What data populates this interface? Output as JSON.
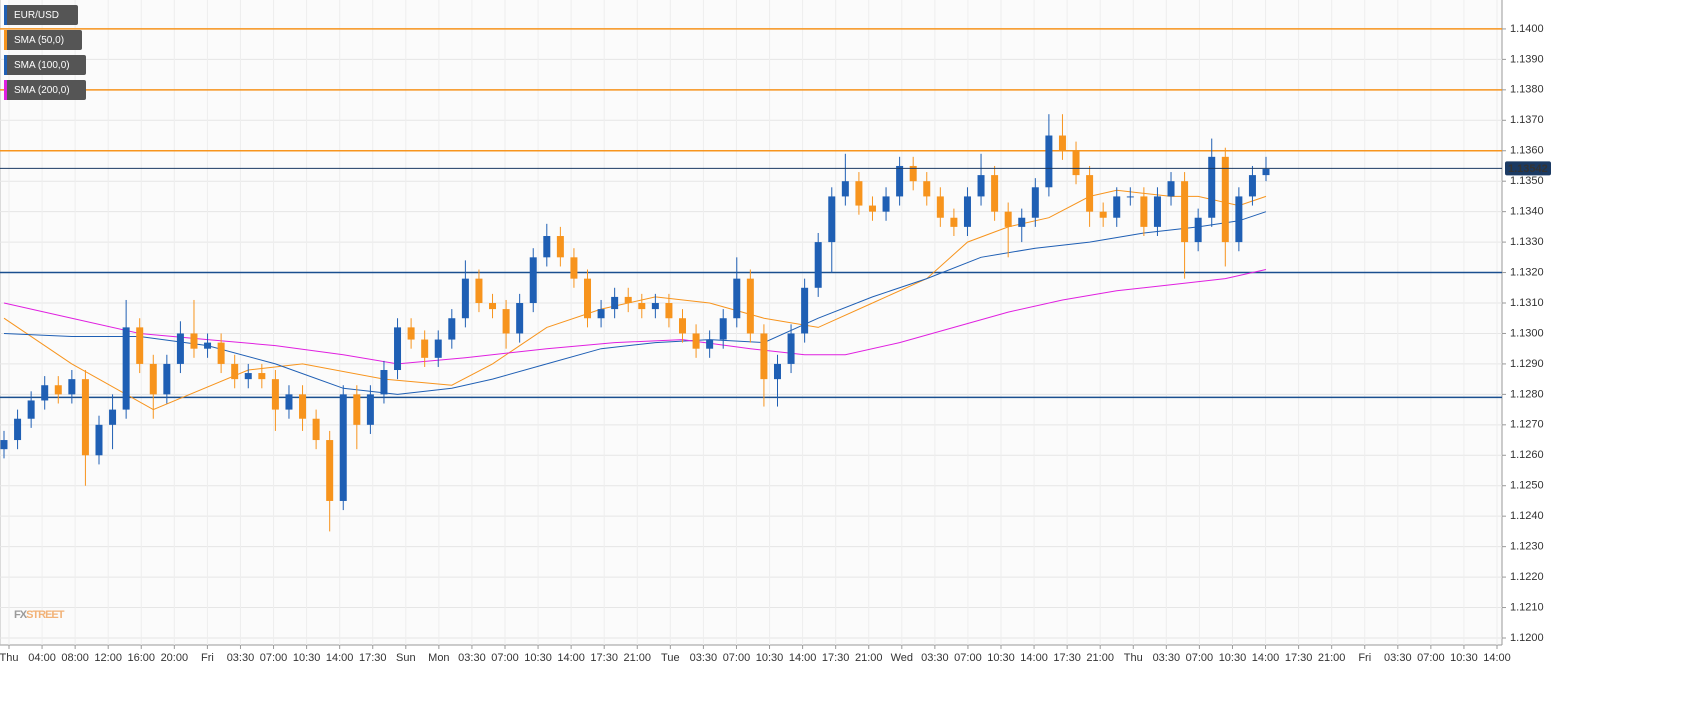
{
  "chart_data": {
    "type": "candlestick",
    "ylim": [
      1.11977,
      1.14095
    ],
    "yticks": [
      {
        "value": 1.12,
        "label": "1.1200"
      },
      {
        "value": 1.121,
        "label": "1.1210"
      },
      {
        "value": 1.122,
        "label": "1.1220"
      },
      {
        "value": 1.123,
        "label": "1.1230"
      },
      {
        "value": 1.124,
        "label": "1.1240"
      },
      {
        "value": 1.125,
        "label": "1.1250"
      },
      {
        "value": 1.126,
        "label": "1.1260"
      },
      {
        "value": 1.127,
        "label": "1.1270"
      },
      {
        "value": 1.128,
        "label": "1.1280"
      },
      {
        "value": 1.129,
        "label": "1.1290"
      },
      {
        "value": 1.13,
        "label": "1.1300"
      },
      {
        "value": 1.131,
        "label": "1.1310"
      },
      {
        "value": 1.132,
        "label": "1.1320"
      },
      {
        "value": 1.133,
        "label": "1.1330"
      },
      {
        "value": 1.134,
        "label": "1.1340"
      },
      {
        "value": 1.135,
        "label": "1.1350"
      },
      {
        "value": 1.136,
        "label": "1.1360"
      },
      {
        "value": 1.137,
        "label": "1.1370"
      },
      {
        "value": 1.138,
        "label": "1.1380"
      },
      {
        "value": 1.139,
        "label": "1.1390"
      },
      {
        "value": 1.14,
        "label": "1.1400"
      }
    ],
    "categories": [
      "Thu",
      "04:00",
      "08:00",
      "12:00",
      "16:00",
      "20:00",
      "Fri",
      "03:30",
      "07:00",
      "10:30",
      "14:00",
      "17:30",
      "Sun",
      "Mon",
      "03:30",
      "07:00",
      "10:30",
      "14:00",
      "17:30",
      "21:00",
      "Tue",
      "03:30",
      "07:00",
      "10:30",
      "14:00",
      "17:30",
      "21:00",
      "Wed",
      "03:30",
      "07:00",
      "10:30",
      "14:00",
      "17:30",
      "21:00",
      "Thu",
      "03:30",
      "07:00",
      "10:30",
      "14:00",
      "17:30",
      "21:00",
      "Fri",
      "03:30",
      "07:00",
      "10:30",
      "14:00"
    ],
    "grid": true,
    "candles": {
      "name": "EUR/USD",
      "up_color": "#1f5fb4",
      "down_color": "#f7941d",
      "open": [
        1.1262,
        1.1265,
        1.1272,
        1.1278,
        1.1283,
        1.128,
        1.1285,
        1.126,
        1.127,
        1.1275,
        1.1302,
        1.129,
        1.128,
        1.129,
        1.13,
        1.1295,
        1.1297,
        1.129,
        1.1285,
        1.1287,
        1.1285,
        1.1275,
        1.128,
        1.1272,
        1.1265,
        1.1245,
        1.128,
        1.127,
        1.128,
        1.1288,
        1.1302,
        1.1298,
        1.1292,
        1.1298,
        1.1305,
        1.1318,
        1.131,
        1.1308,
        1.13,
        1.131,
        1.1325,
        1.1332,
        1.1325,
        1.1318,
        1.1305,
        1.1308,
        1.1312,
        1.131,
        1.1308,
        1.131,
        1.1305,
        1.13,
        1.1295,
        1.1298,
        1.1305,
        1.1318,
        1.13,
        1.1285,
        1.129,
        1.13,
        1.1315,
        1.133,
        1.1345,
        1.135,
        1.1342,
        1.134,
        1.1345,
        1.1355,
        1.135,
        1.1345,
        1.1338,
        1.1335,
        1.1345,
        1.1352,
        1.134,
        1.1335,
        1.1338,
        1.1348,
        1.1365,
        1.136,
        1.1352,
        1.134,
        1.1338,
        1.1345,
        1.1345,
        1.1335,
        1.1345,
        1.135,
        1.133,
        1.1338,
        1.1358,
        1.133,
        1.1345,
        1.1352
      ],
      "high": [
        1.1268,
        1.1275,
        1.1281,
        1.1286,
        1.1286,
        1.1288,
        1.1288,
        1.1273,
        1.128,
        1.1311,
        1.1305,
        1.1293,
        1.1293,
        1.1304,
        1.1311,
        1.13,
        1.13,
        1.1293,
        1.129,
        1.129,
        1.1288,
        1.1283,
        1.1283,
        1.1275,
        1.1268,
        1.1283,
        1.1283,
        1.1283,
        1.1291,
        1.1305,
        1.1305,
        1.1301,
        1.1301,
        1.1308,
        1.1324,
        1.1321,
        1.1313,
        1.1311,
        1.1313,
        1.1328,
        1.1336,
        1.1335,
        1.1328,
        1.1321,
        1.1311,
        1.1315,
        1.1315,
        1.1313,
        1.1313,
        1.1313,
        1.1308,
        1.1303,
        1.1301,
        1.1308,
        1.1325,
        1.1321,
        1.1303,
        1.1293,
        1.1303,
        1.1318,
        1.1333,
        1.1348,
        1.1359,
        1.1353,
        1.1345,
        1.1348,
        1.1358,
        1.1358,
        1.1353,
        1.1348,
        1.1341,
        1.1348,
        1.1359,
        1.1355,
        1.1343,
        1.1341,
        1.1351,
        1.1372,
        1.1372,
        1.1363,
        1.1355,
        1.1343,
        1.1348,
        1.1348,
        1.1348,
        1.1348,
        1.1353,
        1.1353,
        1.1341,
        1.1364,
        1.1361,
        1.1348,
        1.1355,
        1.1358
      ],
      "low": [
        1.1259,
        1.1262,
        1.1269,
        1.1275,
        1.1277,
        1.1277,
        1.125,
        1.1257,
        1.1262,
        1.1272,
        1.1287,
        1.1272,
        1.1277,
        1.1287,
        1.1292,
        1.1292,
        1.1287,
        1.1282,
        1.1282,
        1.1282,
        1.1268,
        1.1272,
        1.1268,
        1.1262,
        1.1235,
        1.1242,
        1.1262,
        1.1267,
        1.1277,
        1.1285,
        1.1295,
        1.1289,
        1.1289,
        1.1295,
        1.1302,
        1.1307,
        1.1305,
        1.1295,
        1.1297,
        1.1307,
        1.1322,
        1.1322,
        1.1315,
        1.1302,
        1.1302,
        1.1305,
        1.1307,
        1.1305,
        1.1305,
        1.1302,
        1.1297,
        1.1292,
        1.1292,
        1.1295,
        1.1302,
        1.1297,
        1.1276,
        1.1276,
        1.1287,
        1.1297,
        1.1312,
        1.132,
        1.1342,
        1.1339,
        1.1337,
        1.1337,
        1.1342,
        1.1347,
        1.1342,
        1.1335,
        1.1332,
        1.1332,
        1.1342,
        1.1337,
        1.1325,
        1.133,
        1.1335,
        1.1345,
        1.1357,
        1.1349,
        1.1335,
        1.1335,
        1.1335,
        1.1342,
        1.1332,
        1.1332,
        1.1342,
        1.1318,
        1.1327,
        1.1335,
        1.1322,
        1.1327,
        1.1342,
        1.135
      ],
      "close": [
        1.1265,
        1.1272,
        1.1278,
        1.1283,
        1.128,
        1.1285,
        1.126,
        1.127,
        1.1275,
        1.1302,
        1.129,
        1.128,
        1.129,
        1.13,
        1.1295,
        1.1297,
        1.129,
        1.1285,
        1.1287,
        1.1285,
        1.1275,
        1.128,
        1.1272,
        1.1265,
        1.1245,
        1.128,
        1.127,
        1.128,
        1.1288,
        1.1302,
        1.1298,
        1.1292,
        1.1298,
        1.1305,
        1.1318,
        1.131,
        1.1308,
        1.13,
        1.131,
        1.1325,
        1.1332,
        1.1325,
        1.1318,
        1.1305,
        1.1308,
        1.1312,
        1.131,
        1.1308,
        1.131,
        1.1305,
        1.13,
        1.1295,
        1.1298,
        1.1305,
        1.1318,
        1.13,
        1.1285,
        1.129,
        1.13,
        1.1315,
        1.133,
        1.1345,
        1.135,
        1.1342,
        1.134,
        1.1345,
        1.1355,
        1.135,
        1.1345,
        1.1338,
        1.1335,
        1.1345,
        1.1352,
        1.134,
        1.1335,
        1.1338,
        1.1348,
        1.1365,
        1.136,
        1.1352,
        1.134,
        1.1338,
        1.1345,
        1.1345,
        1.1335,
        1.1345,
        1.135,
        1.133,
        1.1338,
        1.1358,
        1.133,
        1.1345,
        1.1352,
        1.1354
      ]
    },
    "series": [
      {
        "name": "SMA (50,0)",
        "color": "#f7941d",
        "x": [
          0,
          5,
          11,
          18,
          22,
          28,
          33,
          36,
          40,
          44,
          48,
          52,
          56,
          60,
          64,
          68,
          71,
          74,
          77,
          80,
          82,
          86,
          88,
          91,
          93
        ],
        "values": [
          1.1305,
          1.129,
          1.1275,
          1.1288,
          1.129,
          1.1285,
          1.1283,
          1.129,
          1.1302,
          1.1308,
          1.1312,
          1.131,
          1.1305,
          1.1302,
          1.131,
          1.1318,
          1.133,
          1.1335,
          1.1338,
          1.1345,
          1.1347,
          1.1345,
          1.1345,
          1.1342,
          1.1345
        ]
      },
      {
        "name": "SMA (100,0)",
        "color": "#1f5fb4",
        "x": [
          0,
          5,
          10,
          15,
          20,
          25,
          29,
          33,
          36,
          40,
          44,
          48,
          52,
          56,
          60,
          64,
          68,
          72,
          76,
          80,
          84,
          88,
          91,
          93
        ],
        "values": [
          1.13,
          1.1299,
          1.1299,
          1.1296,
          1.129,
          1.1282,
          1.128,
          1.1282,
          1.1285,
          1.129,
          1.1295,
          1.1297,
          1.1298,
          1.1297,
          1.1305,
          1.1312,
          1.1318,
          1.1325,
          1.1328,
          1.133,
          1.1333,
          1.1335,
          1.1337,
          1.134
        ]
      },
      {
        "name": "SMA (200,0)",
        "color": "#e020e0",
        "x": [
          0,
          5,
          10,
          15,
          20,
          25,
          29,
          34,
          40,
          45,
          50,
          55,
          59,
          62,
          66,
          70,
          74,
          78,
          82,
          86,
          90,
          93
        ],
        "values": [
          1.131,
          1.1305,
          1.13,
          1.1298,
          1.1296,
          1.1293,
          1.129,
          1.1292,
          1.1295,
          1.1297,
          1.1298,
          1.1295,
          1.1293,
          1.1293,
          1.1297,
          1.1302,
          1.1307,
          1.1311,
          1.1314,
          1.1316,
          1.1318,
          1.1321
        ]
      }
    ],
    "levels": [
      {
        "value": 1.14,
        "color": "#f7941d"
      },
      {
        "value": 1.138,
        "color": "#f7941d"
      },
      {
        "value": 1.136,
        "color": "#f7941d"
      },
      {
        "value": 1.132,
        "color": "#1a4f8f"
      },
      {
        "value": 1.1279,
        "color": "#1a4f8f"
      }
    ],
    "current_price": {
      "value": 1.13542,
      "label": "1.13542",
      "color": "#1b3a63"
    },
    "watermark": [
      "FX",
      "STREET"
    ]
  }
}
